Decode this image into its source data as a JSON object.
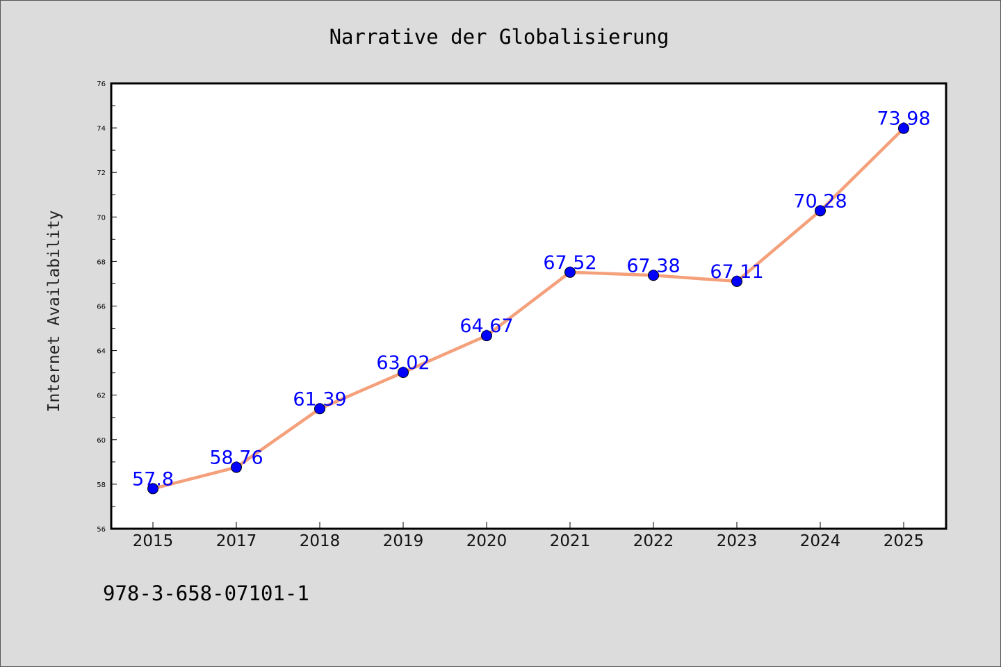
{
  "chart_data": {
    "type": "line",
    "title": "Narrative der Globalisierung",
    "xlabel": "",
    "ylabel": "Internet Availability",
    "categories": [
      "2015",
      "2017",
      "2018",
      "2019",
      "2020",
      "2021",
      "2022",
      "2023",
      "2024",
      "2025"
    ],
    "series": [
      {
        "values": [
          57.8,
          58.76,
          61.39,
          63.02,
          64.67,
          67.52,
          67.38,
          67.11,
          70.28,
          73.98
        ],
        "labels": [
          "57.8",
          "58.76",
          "61.39",
          "63.02",
          "64.67",
          "67.52",
          "67.38",
          "67.11",
          "70.28",
          "73.98"
        ],
        "line_color": "#f4a07a",
        "marker_color": "#0000ff"
      }
    ],
    "ylim": [
      56,
      76
    ],
    "yticks": [
      "56",
      "58",
      "60",
      "62",
      "64",
      "66",
      "68",
      "70",
      "72",
      "74",
      "76"
    ],
    "grid": false,
    "legend": "none",
    "label_color": "#0000ff"
  },
  "footer": {
    "isbn": "978-3-658-07101-1"
  }
}
